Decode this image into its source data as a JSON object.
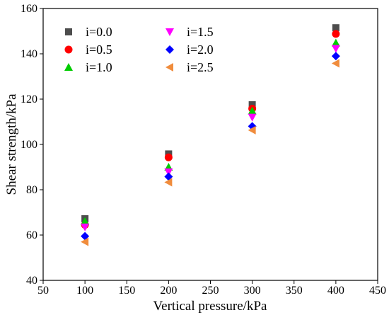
{
  "chart_data": {
    "type": "scatter",
    "xlabel": "Vertical pressure/kPa",
    "ylabel": "Shear strength/kPa",
    "xlim": [
      50,
      450
    ],
    "ylim": [
      40,
      160
    ],
    "xticks": [
      50,
      100,
      150,
      200,
      250,
      300,
      350,
      400,
      450
    ],
    "yticks": [
      40,
      60,
      80,
      100,
      120,
      140,
      160
    ],
    "x": [
      100,
      200,
      300,
      400
    ],
    "grid": false,
    "legend_placement": "top-left",
    "series": [
      {
        "name": "i=0.0",
        "marker": "square",
        "color": "#4d4d4d",
        "values": [
          67.2,
          95.8,
          117.5,
          151.5
        ]
      },
      {
        "name": "i=0.5",
        "marker": "circle",
        "color": "#ff0000",
        "values": [
          64.5,
          94.3,
          115.8,
          148.8
        ]
      },
      {
        "name": "i=1.0",
        "marker": "triangle-up",
        "color": "#00cc00",
        "values": [
          66.0,
          90.0,
          114.8,
          144.8
        ]
      },
      {
        "name": "i=1.5",
        "marker": "triangle-down",
        "color": "#ff00ff",
        "values": [
          63.5,
          87.8,
          112.0,
          142.3
        ]
      },
      {
        "name": "i=2.0",
        "marker": "diamond",
        "color": "#0000ff",
        "values": [
          59.5,
          85.8,
          108.0,
          139.0
        ]
      },
      {
        "name": "i=2.5",
        "marker": "triangle-left",
        "color": "#f08c3c",
        "values": [
          57.0,
          83.3,
          106.3,
          135.8
        ]
      }
    ]
  }
}
